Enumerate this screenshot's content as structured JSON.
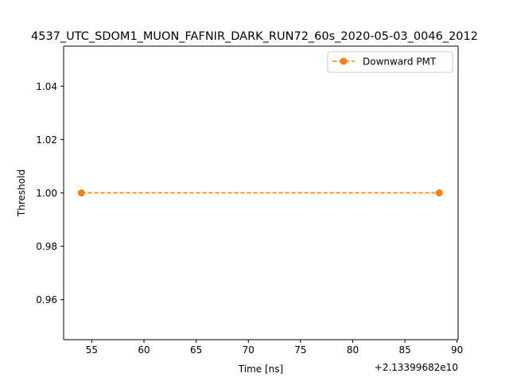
{
  "chart_data": {
    "type": "line",
    "title": "4537_UTC_SDOM1_MUON_FAFNIR_DARK_RUN72_60s_2020-05-03_0046_2012",
    "xlabel": "Time [ns]",
    "ylabel": "Threshold",
    "x_offset_label": "+2.13399682e10",
    "xlim": [
      52.3,
      90.1
    ],
    "ylim": [
      0.945,
      1.055
    ],
    "x_ticks": [
      55,
      60,
      65,
      70,
      75,
      80,
      85,
      90
    ],
    "y_ticks": [
      0.96,
      0.98,
      1.0,
      1.02,
      1.04
    ],
    "x_tick_labels": [
      "55",
      "60",
      "65",
      "70",
      "75",
      "80",
      "85",
      "90"
    ],
    "y_tick_labels": [
      "0.96",
      "0.98",
      "1.00",
      "1.02",
      "1.04"
    ],
    "grid": false,
    "legend_position": "top-right",
    "series": [
      {
        "name": "Downward PMT",
        "color": "#ff7f0e",
        "line_style": "dashed",
        "marker": "circle",
        "x": [
          54.0,
          88.3
        ],
        "y": [
          1.0,
          1.0
        ]
      }
    ]
  }
}
